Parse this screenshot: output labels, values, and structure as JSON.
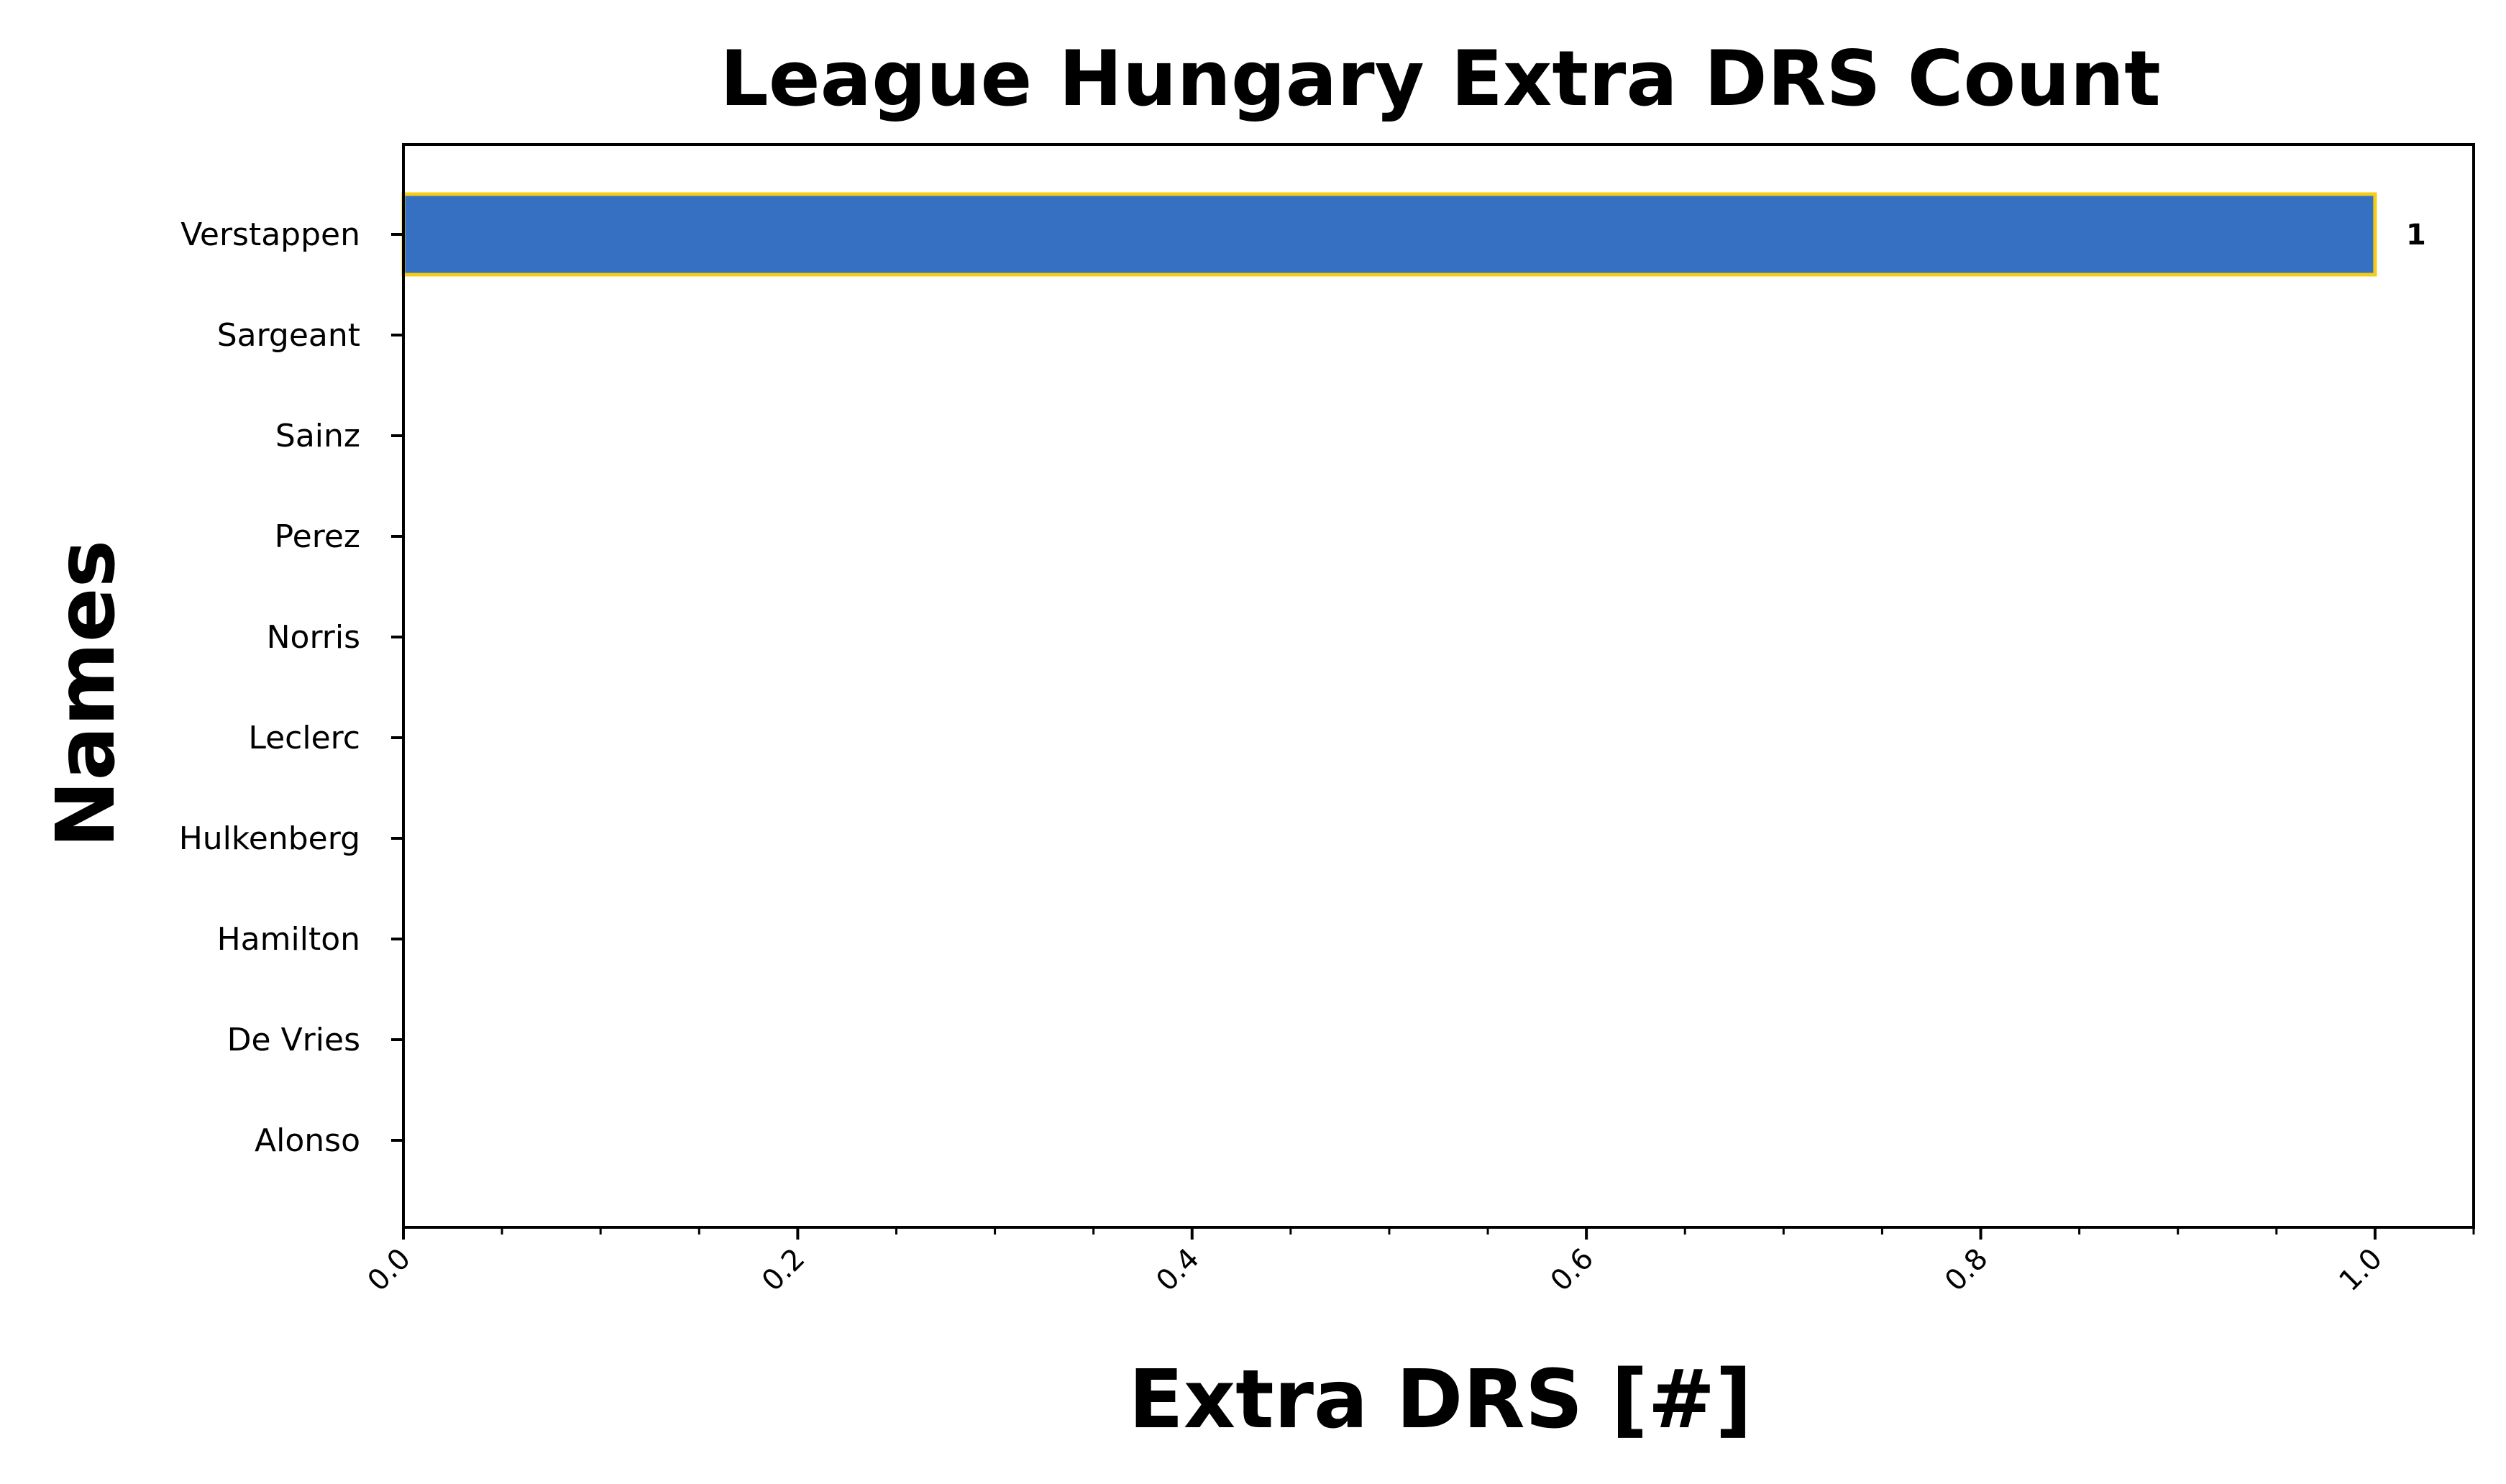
{
  "chart_data": {
    "type": "bar",
    "orientation": "horizontal",
    "title": "League Hungary Extra DRS Count",
    "xlabel": "Extra DRS [#]",
    "ylabel": "Names",
    "categories": [
      "Verstappen",
      "Sargeant",
      "Sainz",
      "Perez",
      "Norris",
      "Leclerc",
      "Hulkenberg",
      "Hamilton",
      "De Vries",
      "Alonso"
    ],
    "values": [
      1,
      0,
      0,
      0,
      0,
      0,
      0,
      0,
      0,
      0
    ],
    "data_labels": [
      "1",
      "",
      "",
      "",
      "",
      "",
      "",
      "",
      "",
      ""
    ],
    "xlim": [
      0,
      1.05
    ],
    "xticks": [
      "0.0",
      "0.2",
      "0.4",
      "0.6",
      "0.8",
      "1.0"
    ],
    "xtick_values": [
      0,
      0.2,
      0.4,
      0.6,
      0.8,
      1.0
    ],
    "minor_xtick_step": 0.05,
    "grid": false,
    "legend": "none",
    "colors": {
      "bar_fill": "#3670c2",
      "bar_edge": "#f5cc16",
      "axis": "#000000"
    }
  }
}
